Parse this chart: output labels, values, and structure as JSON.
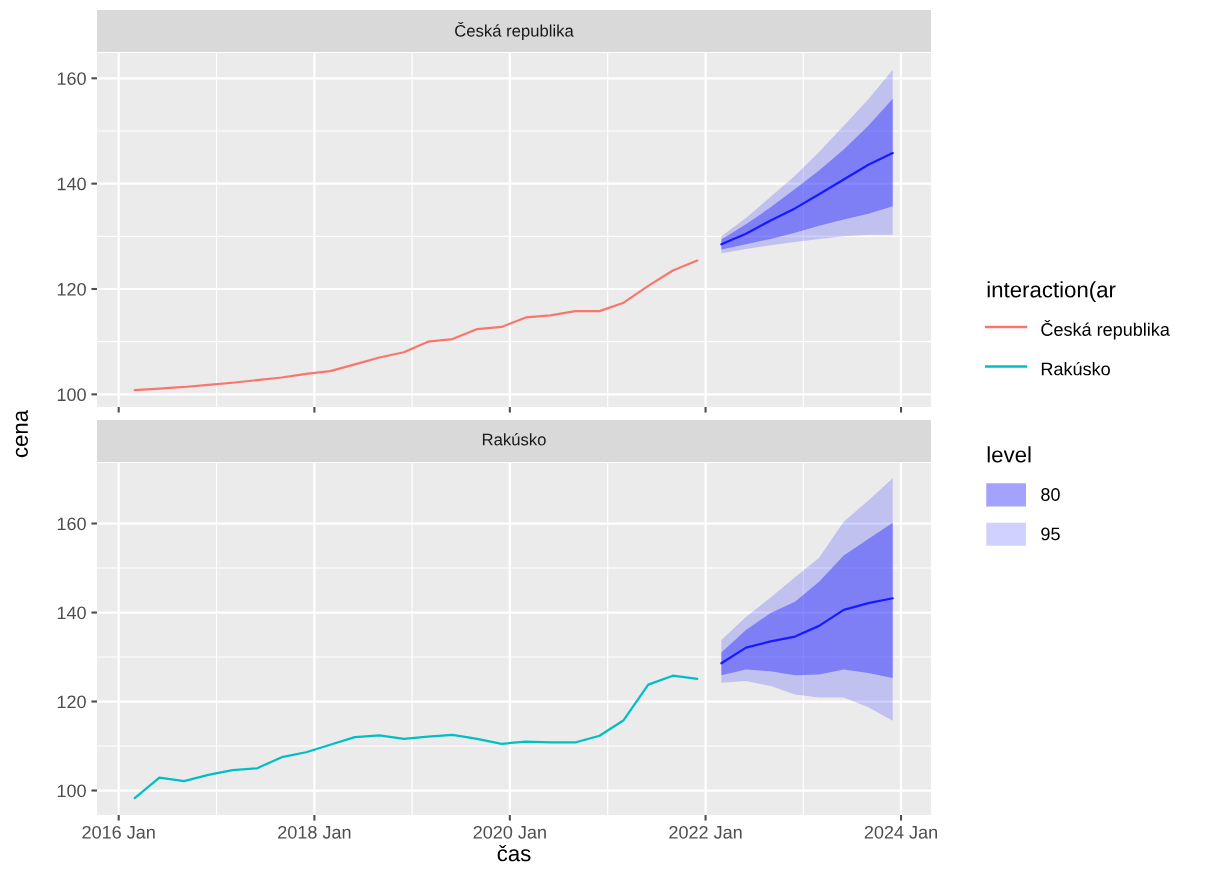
{
  "chart_data": [
    {
      "type": "line",
      "title": "Česká republika",
      "legend": "right",
      "legend_title": "interaction(ar",
      "grid": true,
      "tick_labels": "y",
      "xlim": [
        "2015-10-12",
        "2024-04-22"
      ],
      "xticks": [
        {
          "value": "2016-01-01",
          "label": null
        },
        {
          "value": "2018-01-01",
          "label": null
        },
        {
          "value": "2020-01-01",
          "label": null
        },
        {
          "value": "2022-01-01",
          "label": null
        },
        {
          "value": "2024-01-01",
          "label": null
        }
      ],
      "ylim": [
        97.6,
        164.8
      ],
      "yticks": [
        100,
        120,
        140,
        160
      ],
      "series": [
        {
          "type": "line",
          "color": "#1a1aff",
          "x": [
            "2022-03",
            "2022-06",
            "2022-09",
            "2022-12",
            "2023-03",
            "2023-06",
            "2023-09",
            "2023-12"
          ],
          "values": [
            128.5,
            130.5,
            133.0,
            135.3,
            138.0,
            140.8,
            143.6,
            145.8
          ],
          "lower": [
            127.5,
            128.5,
            129.5,
            130.7,
            132.0,
            133.2,
            134.3,
            135.7
          ],
          "upper": [
            129.4,
            132.3,
            135.5,
            139.0,
            142.5,
            146.5,
            151.0,
            156.1
          ]
        },
        {
          "type": "line",
          "color": "#1a1aff",
          "x": [
            "2022-03",
            "2022-06",
            "2022-09",
            "2022-12",
            "2023-03",
            "2023-06",
            "2023-09",
            "2023-12"
          ],
          "values": [
            null,
            null,
            null,
            null,
            null,
            null,
            null,
            null
          ],
          "lower": [
            126.8,
            127.6,
            128.3,
            128.9,
            129.5,
            130.0,
            130.3,
            130.3
          ],
          "upper": [
            130.0,
            133.5,
            137.5,
            141.5,
            146.0,
            151.0,
            156.0,
            161.6
          ]
        },
        {
          "type": "line",
          "name": "Česká republika",
          "color": "#f8766d",
          "x": [
            "2016-03",
            "2016-06",
            "2016-09",
            "2016-12",
            "2017-03",
            "2017-06",
            "2017-09",
            "2017-12",
            "2018-03",
            "2018-06",
            "2018-09",
            "2018-12",
            "2019-03",
            "2019-06",
            "2019-09",
            "2019-12",
            "2020-03",
            "2020-06",
            "2020-09",
            "2020-12",
            "2021-03",
            "2021-06",
            "2021-09",
            "2021-12"
          ],
          "values": [
            100.8,
            101.1,
            101.4,
            101.8,
            102.2,
            102.7,
            103.2,
            103.9,
            104.4,
            105.7,
            107.0,
            108.0,
            110.0,
            110.5,
            112.4,
            112.8,
            114.6,
            115.0,
            115.8,
            115.8,
            117.4,
            120.6,
            123.5,
            125.4
          ]
        }
      ]
    },
    {
      "type": "line",
      "title": "Rakúsko",
      "legend": "right",
      "legend_title": "level",
      "grid": true,
      "xlabel": "čas",
      "ylabel": "cena",
      "xlim": [
        "2015-10-12",
        "2024-04-22"
      ],
      "xticks": [
        {
          "value": "2016-01-01",
          "label": "2016 Jan"
        },
        {
          "value": "2018-01-01",
          "label": "2018 Jan"
        },
        {
          "value": "2020-01-01",
          "label": "2020 Jan"
        },
        {
          "value": "2022-01-01",
          "label": "2022 Jan"
        },
        {
          "value": "2024-01-01",
          "label": "2024 Jan"
        }
      ],
      "ylim": [
        94.5,
        173.6
      ],
      "yticks": [
        100,
        120,
        140,
        160
      ],
      "series": [
        {
          "type": "line",
          "name": "80",
          "color": "#1a1aff",
          "x": [
            "2022-03",
            "2022-06",
            "2022-09",
            "2022-12",
            "2023-03",
            "2023-06",
            "2023-09",
            "2023-12"
          ],
          "values": [
            128.6,
            132.1,
            133.5,
            134.6,
            137.0,
            140.6,
            142.1,
            143.2
          ],
          "lower": [
            125.9,
            127.2,
            126.8,
            125.9,
            126.1,
            127.2,
            126.4,
            125.3
          ],
          "upper": [
            131.0,
            136.1,
            139.9,
            142.4,
            146.9,
            152.8,
            156.5,
            160.2
          ]
        },
        {
          "type": "line",
          "name": "95",
          "color": "#1a1aff",
          "x": [
            "2022-03",
            "2022-06",
            "2022-09",
            "2022-12",
            "2023-03",
            "2023-06",
            "2023-09",
            "2023-12"
          ],
          "values": [
            null,
            null,
            null,
            null,
            null,
            null,
            null,
            null
          ],
          "lower": [
            124.2,
            124.6,
            123.5,
            121.6,
            120.9,
            120.9,
            118.7,
            115.7
          ],
          "upper": [
            133.8,
            139.0,
            143.4,
            147.9,
            152.3,
            160.4,
            165.2,
            170.2
          ]
        },
        {
          "type": "line",
          "name": "Rakúsko",
          "color": "#00bfc4",
          "x": [
            "2016-03",
            "2016-06",
            "2016-09",
            "2016-12",
            "2017-03",
            "2017-06",
            "2017-09",
            "2017-12",
            "2018-03",
            "2018-06",
            "2018-09",
            "2018-12",
            "2019-03",
            "2019-06",
            "2019-09",
            "2019-12",
            "2020-03",
            "2020-06",
            "2020-09",
            "2020-12",
            "2021-03",
            "2021-06",
            "2021-09",
            "2021-12"
          ],
          "values": [
            98.3,
            102.9,
            102.1,
            103.5,
            104.6,
            105.0,
            107.5,
            108.6,
            110.3,
            112.0,
            112.4,
            111.6,
            112.1,
            112.5,
            111.6,
            110.5,
            111.0,
            110.8,
            110.8,
            112.3,
            115.8,
            123.8,
            125.8,
            125.1
          ]
        }
      ]
    }
  ]
}
